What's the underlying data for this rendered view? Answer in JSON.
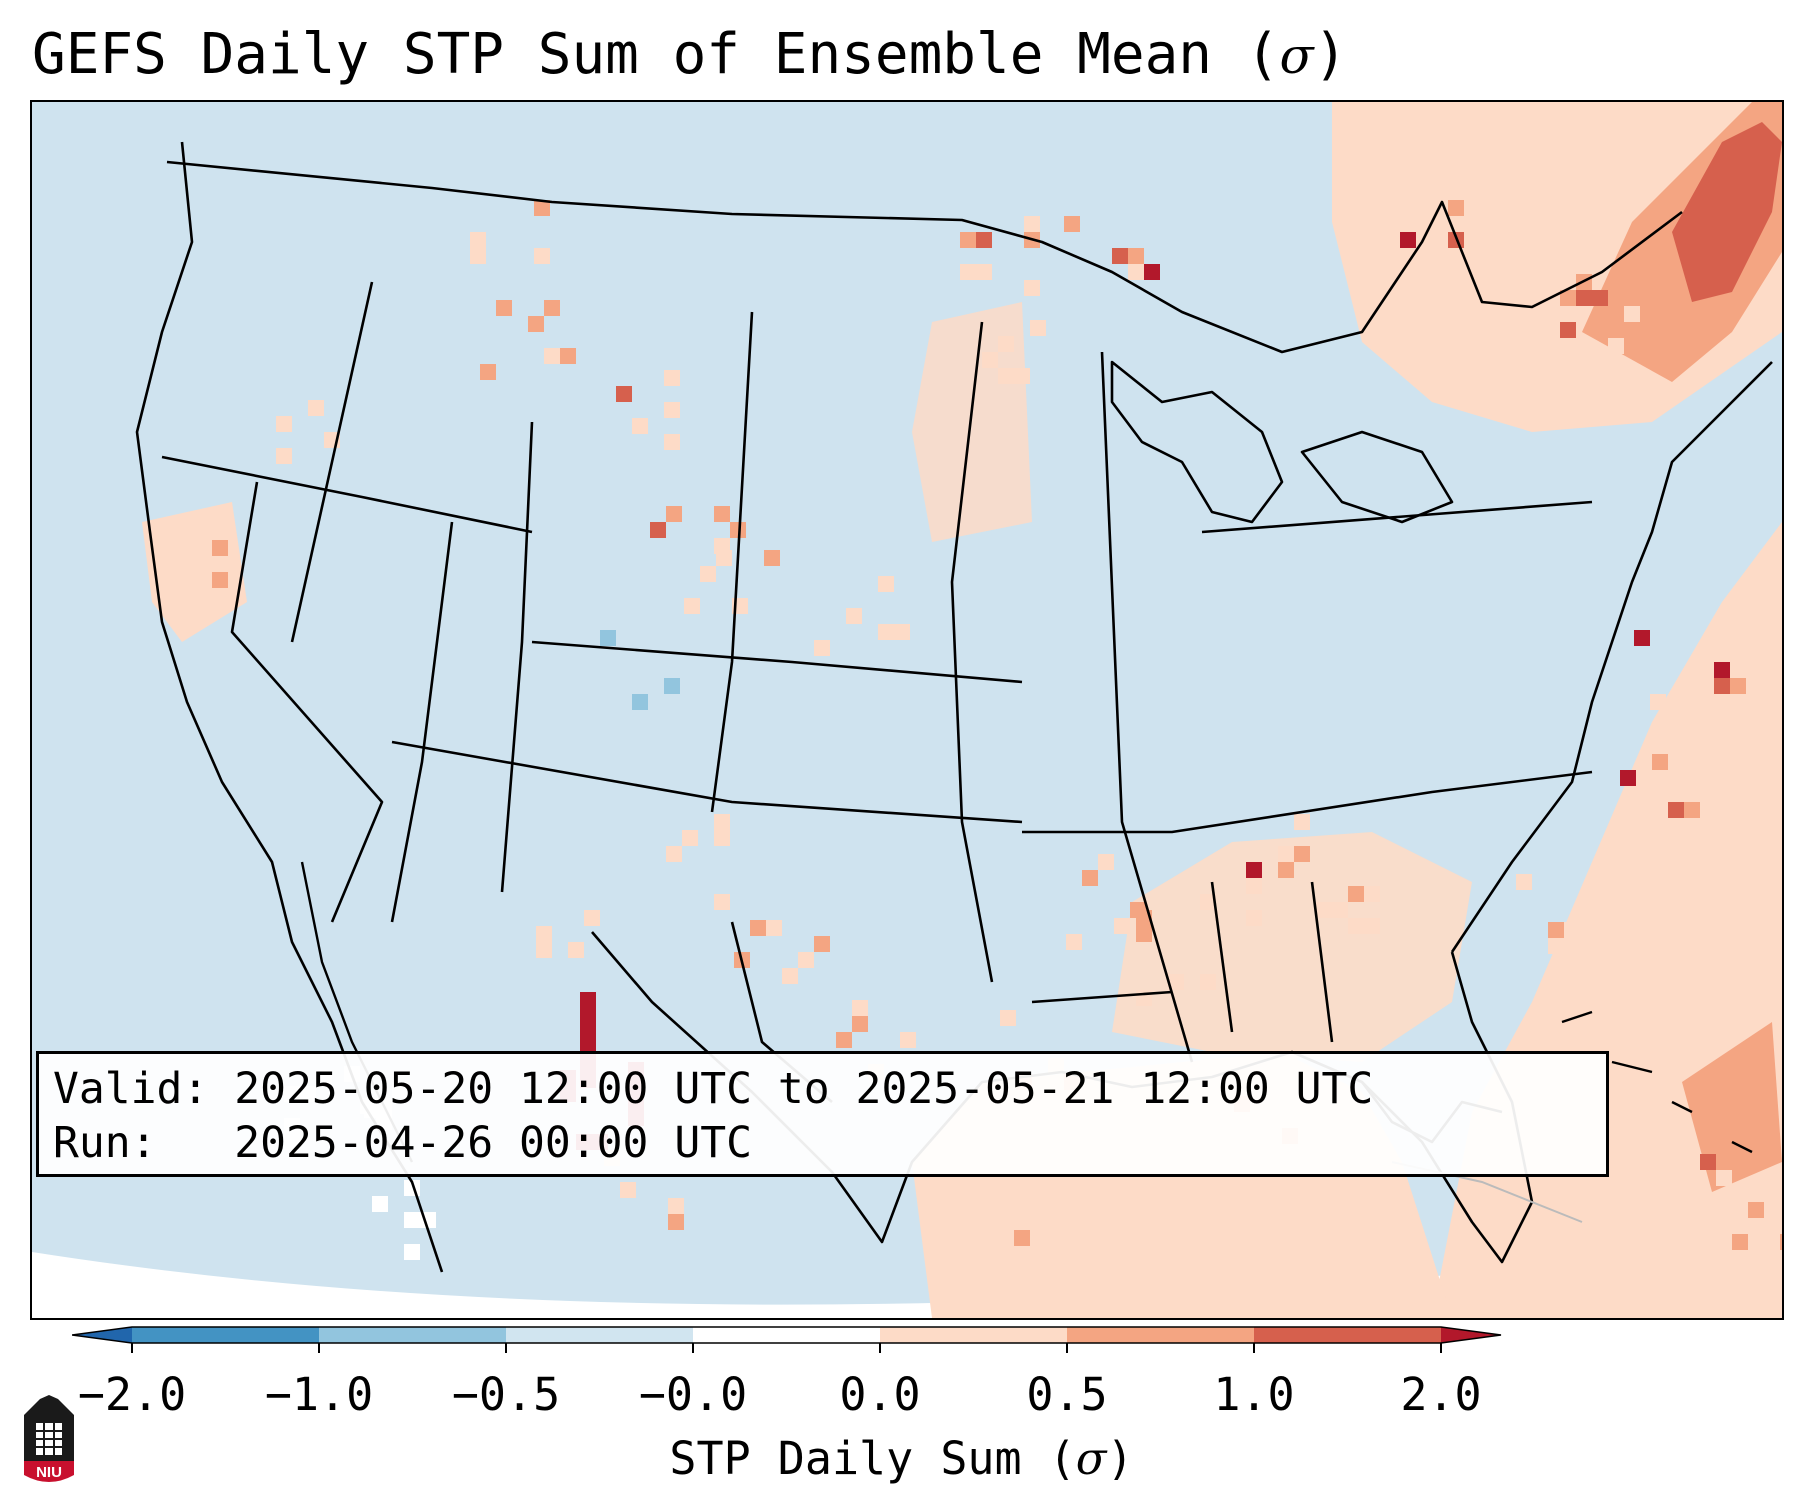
{
  "title": {
    "prefix": "GEFS Daily STP Sum of Ensemble Mean (",
    "sigma": "σ",
    "suffix": ")"
  },
  "info": {
    "valid_label": "Valid:",
    "valid_value": "2025-05-20 12:00 UTC to 2025-05-21 12:00 UTC",
    "run_label": "Run:",
    "run_value": "2025-04-26 00:00 UTC"
  },
  "colorbar": {
    "tick_labels": [
      "−2.0",
      "−1.0",
      "−0.5",
      "−0.0",
      "0.0",
      "0.5",
      "1.0",
      "2.0"
    ],
    "title_prefix": "STP Daily Sum (",
    "title_sigma": "σ",
    "title_suffix": ")",
    "bins": [
      {
        "range": "< -2.0",
        "color": "#2166ac"
      },
      {
        "range": "-2.0 to -1.0",
        "color": "#4393c3"
      },
      {
        "range": "-1.0 to -0.5",
        "color": "#92c5de"
      },
      {
        "range": "-0.5 to -0.0",
        "color": "#d1e5f0"
      },
      {
        "range": "-0.0 to 0.0",
        "color": "#ffffff"
      },
      {
        "range": "0.0 to 0.5",
        "color": "#fddbc7"
      },
      {
        "range": "0.5 to 1.0",
        "color": "#f4a582"
      },
      {
        "range": "1.0 to 2.0",
        "color": "#d6604d"
      },
      {
        "range": "> 2.0",
        "color": "#b2182b"
      }
    ]
  },
  "logo": {
    "text": "NIU",
    "color": "#c8102e"
  }
}
